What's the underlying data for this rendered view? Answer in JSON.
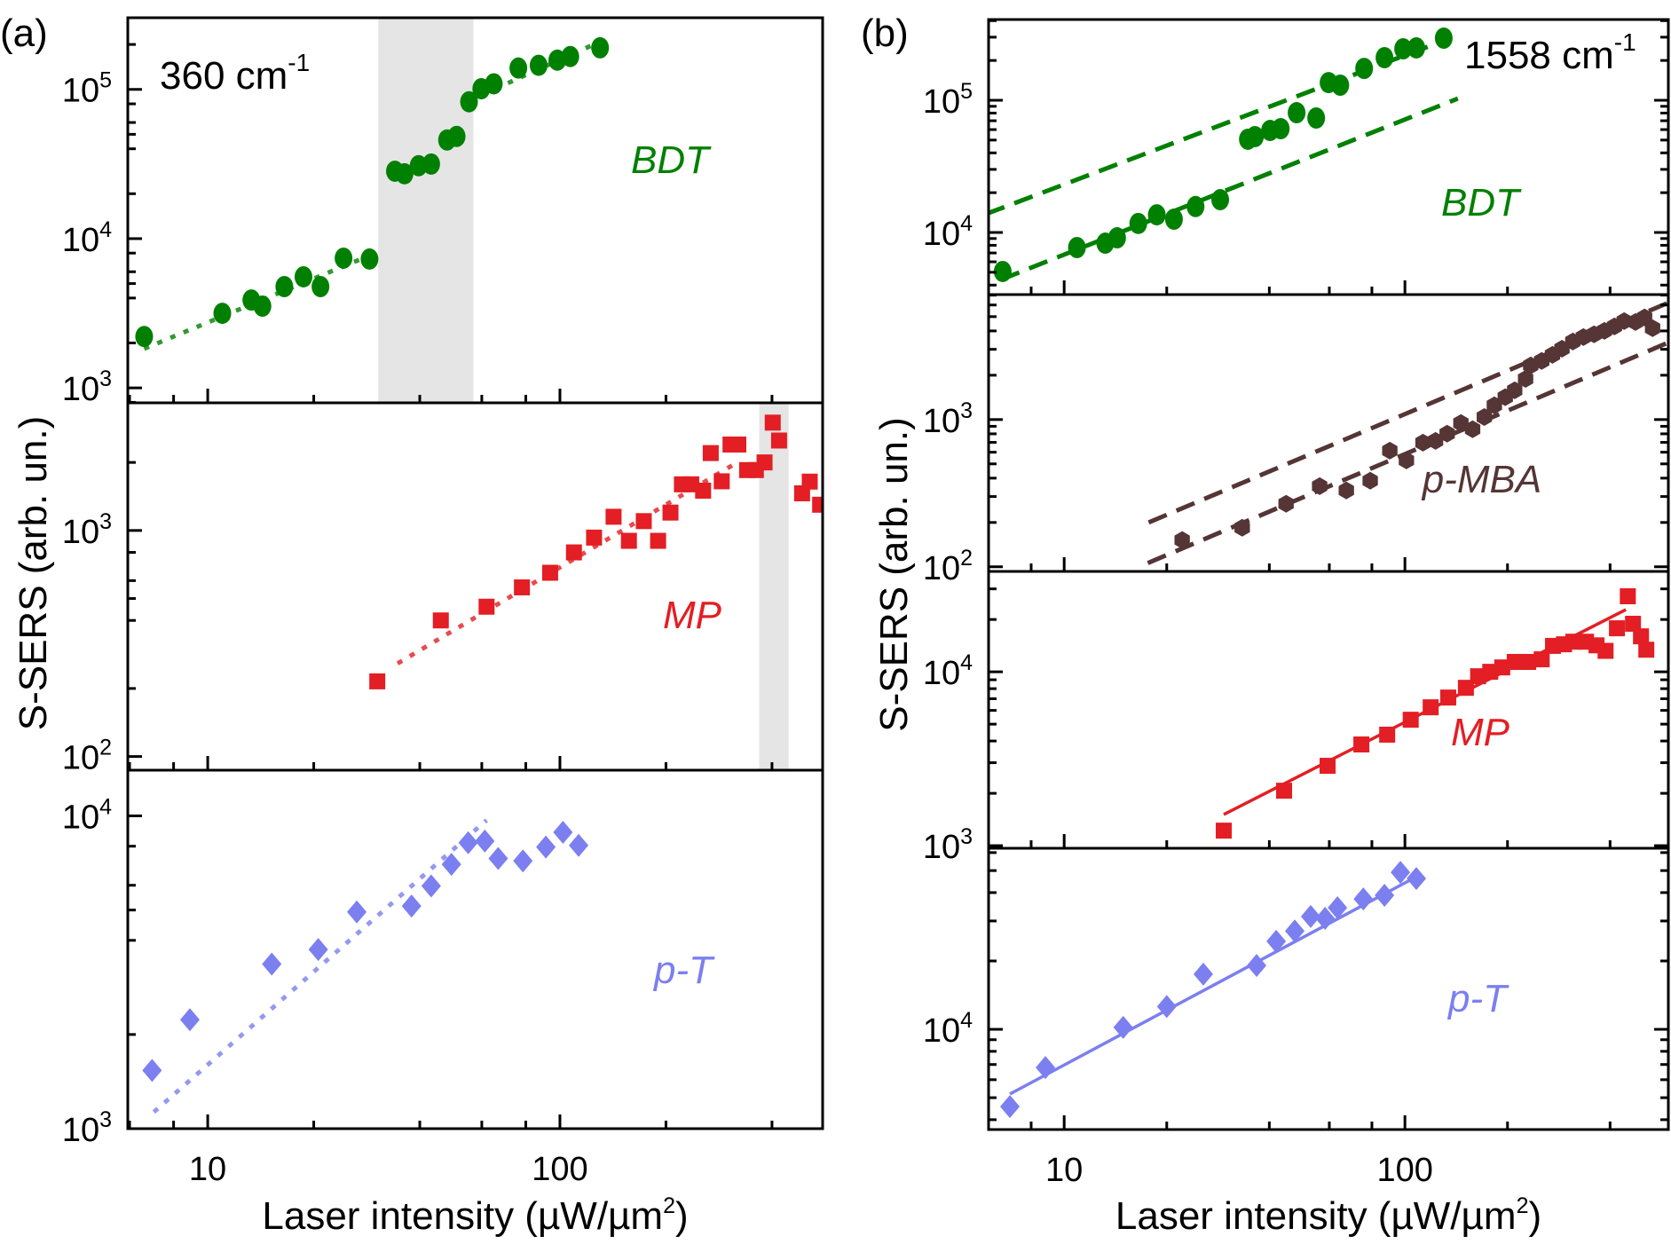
{
  "chart_data": [
    {
      "panel": "(a)",
      "type": "scatter",
      "annotation": "360 cm",
      "annotation_sup": "-1",
      "xlabel": "Laser intensity (µW/µm",
      "xlabel_sup": "2",
      "xlabel_end": ")",
      "ylabel": "S-SERS (arb. un.)",
      "xscale": "log",
      "xlim": [
        5.93,
        557
      ],
      "xticks": [
        10,
        100
      ],
      "xtick_labels": [
        "10",
        "100"
      ],
      "subplots": [
        {
          "name": "BDT",
          "color": "#008000",
          "marker": "circle",
          "yscale": "log",
          "ylim": [
            794,
            302000
          ],
          "yticks": [
            1000,
            10000,
            100000
          ],
          "ytick_labels": [
            [
              "10",
              "3"
            ],
            [
              "10",
              "4"
            ],
            [
              "10",
              "5"
            ]
          ],
          "shaded_x": [
            [
              30.5,
              56.8
            ]
          ],
          "x": [
            6.6,
            11.0,
            13.3,
            14.3,
            16.5,
            18.7,
            20.9,
            24.3,
            28.8,
            34.0,
            36.2,
            39.7,
            43.1,
            47.8,
            50.9,
            55.2,
            59.8,
            64.9,
            76.2,
            87.0,
            98.3,
            107,
            130
          ],
          "y": [
            2210,
            3160,
            3880,
            3530,
            4770,
            5550,
            4770,
            7400,
            7300,
            28300,
            27200,
            30800,
            31600,
            45800,
            48400,
            82600,
            101000,
            109000,
            139000,
            145000,
            157000,
            166000,
            190000
          ],
          "fits": [
            {
              "style": "dotted",
              "x": [
                6.6,
                29.2
              ],
              "y": [
                1830,
                7810
              ]
            },
            {
              "style": "dotted",
              "x": [
                60.1,
                129
              ],
              "y": [
                92100,
                207000
              ]
            }
          ]
        },
        {
          "name": "MP",
          "color": "#e31e24",
          "marker": "square",
          "yscale": "log",
          "ylim": [
            87,
            3670
          ],
          "yticks": [
            100,
            1000
          ],
          "ytick_labels": [
            [
              "10",
              "2"
            ],
            [
              "10",
              "3"
            ]
          ],
          "shaded_x": [
            [
              368,
              446
            ]
          ],
          "x": [
            30.3,
            45.9,
            61.9,
            78,
            93.8,
            109.6,
            125,
            142,
            157,
            173,
            190,
            206,
            222,
            236,
            255,
            268,
            288,
            305,
            321,
            340,
            360,
            381,
            402,
            419,
            487,
            512,
            548
          ],
          "y": [
            215,
            400,
            460,
            560,
            650,
            800,
            930,
            1150,
            900,
            1100,
            900,
            1200,
            1600,
            1600,
            1500,
            2200,
            1650,
            2400,
            2400,
            1850,
            1850,
            2000,
            3000,
            2500,
            1460,
            1645,
            1300
          ],
          "fits": [
            {
              "style": "dotted",
              "x": [
                34.6,
                317
              ],
              "y": [
                258,
                1990
              ]
            }
          ]
        },
        {
          "name": "p-T",
          "color": "#7b7ff0",
          "marker": "diamond",
          "yscale": "log",
          "ylim": [
            1000,
            14000
          ],
          "yticks": [
            1000,
            10000
          ],
          "ytick_labels": [
            [
              "10",
              "3"
            ],
            [
              "10",
              "4"
            ]
          ],
          "shaded_x": [],
          "x": [
            6.95,
            8.9,
            15.2,
            20.6,
            26.5,
            37.9,
            43.1,
            49.2,
            54.9,
            61.2,
            66.8,
            78.5,
            91.2,
            102,
            113
          ],
          "y": [
            1535,
            2230,
            3360,
            3740,
            4930,
            5150,
            5970,
            7000,
            8210,
            8310,
            7310,
            7180,
            7950,
            8860,
            8050
          ],
          "fits": [
            {
              "style": "dotted",
              "x": [
                7.03,
                61.9
              ],
              "y": [
                1130,
                9690
              ]
            }
          ]
        }
      ]
    },
    {
      "panel": "(b)",
      "type": "scatter",
      "annotation": "1558 cm",
      "annotation_sup": "-1",
      "xlabel": "Laser intensity (µW/µm",
      "xlabel_sup": "2",
      "xlabel_end": ")",
      "ylabel": "S-SERS (arb. un.)",
      "xscale": "log",
      "xlim": [
        6.0,
        593
      ],
      "xticks": [
        10,
        100
      ],
      "xtick_labels": [
        "10",
        "100"
      ],
      "subplots": [
        {
          "name": "BDT",
          "color": "#008000",
          "marker": "circle",
          "yscale": "log",
          "ylim": [
            3390,
            408000
          ],
          "yticks": [
            10000,
            100000
          ],
          "ytick_labels": [
            [
              "10",
              "4"
            ],
            [
              "10",
              "5"
            ]
          ],
          "shaded_x": [],
          "x": [
            6.6,
            10.9,
            13.2,
            14.3,
            16.5,
            18.7,
            21.0,
            24.3,
            28.7,
            34.6,
            36.3,
            40.2,
            43.2,
            48.1,
            54.9,
            59.7,
            64.6,
            75.9,
            87.1,
            98.8,
            108,
            130
          ],
          "y": [
            5070,
            7690,
            8300,
            9110,
            11700,
            13600,
            12600,
            15700,
            17700,
            50700,
            53100,
            59100,
            61000,
            80500,
            73400,
            136000,
            130000,
            174000,
            210000,
            245000,
            249000,
            295000
          ],
          "fits": [
            {
              "style": "dashed",
              "x": [
                5.9,
                136
              ],
              "y": [
                13800,
                295000
              ]
            },
            {
              "style": "dashed",
              "x": [
                6.53,
                143
              ],
              "y": [
                4400,
                103000
              ]
            }
          ]
        },
        {
          "name": "p-MBA",
          "color": "#553535",
          "marker": "hexagon",
          "yscale": "log",
          "ylim": [
            93,
            7060
          ],
          "yticks": [
            100,
            1000
          ],
          "ytick_labels": [
            [
              "10",
              "2"
            ],
            [
              "10",
              "3"
            ]
          ],
          "shaded_x": [],
          "x": [
            22.2,
            33.3,
            44.8,
            56.2,
            67.3,
            79.1,
            90.3,
            101,
            113,
            123,
            133,
            146,
            158,
            171,
            183,
            197,
            210,
            226,
            234,
            252,
            271,
            289,
            311,
            334,
            359,
            385,
            412,
            440,
            475,
            505,
            533
          ],
          "y": [
            152,
            184,
            268,
            353,
            330,
            384,
            615,
            528,
            697,
            716,
            801,
            946,
            859,
            1040,
            1250,
            1420,
            1580,
            1890,
            2330,
            2500,
            2750,
            3030,
            3390,
            3630,
            3790,
            4000,
            4290,
            4660,
            4600,
            4940,
            4170
          ],
          "fits": [
            {
              "style": "dashed",
              "x": [
                17.7,
                603
              ],
              "y": [
                200,
                6320
              ]
            },
            {
              "style": "dashed",
              "x": [
                17.6,
                603
              ],
              "y": [
                106,
                3390
              ]
            }
          ]
        },
        {
          "name": "MP",
          "color": "#e31e24",
          "marker": "square",
          "yscale": "log",
          "ylim": [
            966,
            37800
          ],
          "yticks": [
            1000,
            10000
          ],
          "ytick_labels": [
            [
              "10",
              "3"
            ],
            [
              "10",
              "4"
            ]
          ],
          "shaded_x": [],
          "x": [
            29.4,
            44.2,
            59.3,
            74.5,
            88.7,
            104,
            119,
            134,
            151,
            164,
            178,
            193,
            210,
            230,
            252,
            272,
            293,
            312,
            340,
            365,
            388,
            419,
            451,
            467,
            493,
            511
          ],
          "y": [
            1220,
            2070,
            2880,
            3820,
            4350,
            5300,
            6250,
            7110,
            8090,
            9430,
            10000,
            10600,
            11400,
            11400,
            11800,
            14100,
            14400,
            14900,
            14900,
            14200,
            13200,
            17800,
            27200,
            18900,
            16000,
            13400
          ],
          "fits": [
            {
              "style": "solid",
              "x": [
                29.4,
                445
              ],
              "y": [
                1510,
                22800
              ]
            }
          ]
        },
        {
          "name": "p-T",
          "color": "#7b7ff0",
          "marker": "diamond",
          "yscale": "log",
          "ylim": [
            3620,
            62700
          ],
          "yticks": [
            10000
          ],
          "ytick_labels": [
            [
              "10",
              "4"
            ]
          ],
          "shaded_x": [],
          "x": [
            6.93,
            8.81,
            14.9,
            20.0,
            25.6,
            36.7,
            41.9,
            47.5,
            52.9,
            58.3,
            63.4,
            75.5,
            87.1,
            97.0,
            108
          ],
          "y": [
            4570,
            6790,
            10200,
            12600,
            17500,
            19100,
            24400,
            27100,
            31400,
            30800,
            34300,
            37500,
            38900,
            49100,
            46100
          ],
          "fits": [
            {
              "style": "solid",
              "x": [
                6.93,
                107
              ],
              "y": [
                5190,
                46600
              ]
            }
          ]
        }
      ]
    }
  ]
}
